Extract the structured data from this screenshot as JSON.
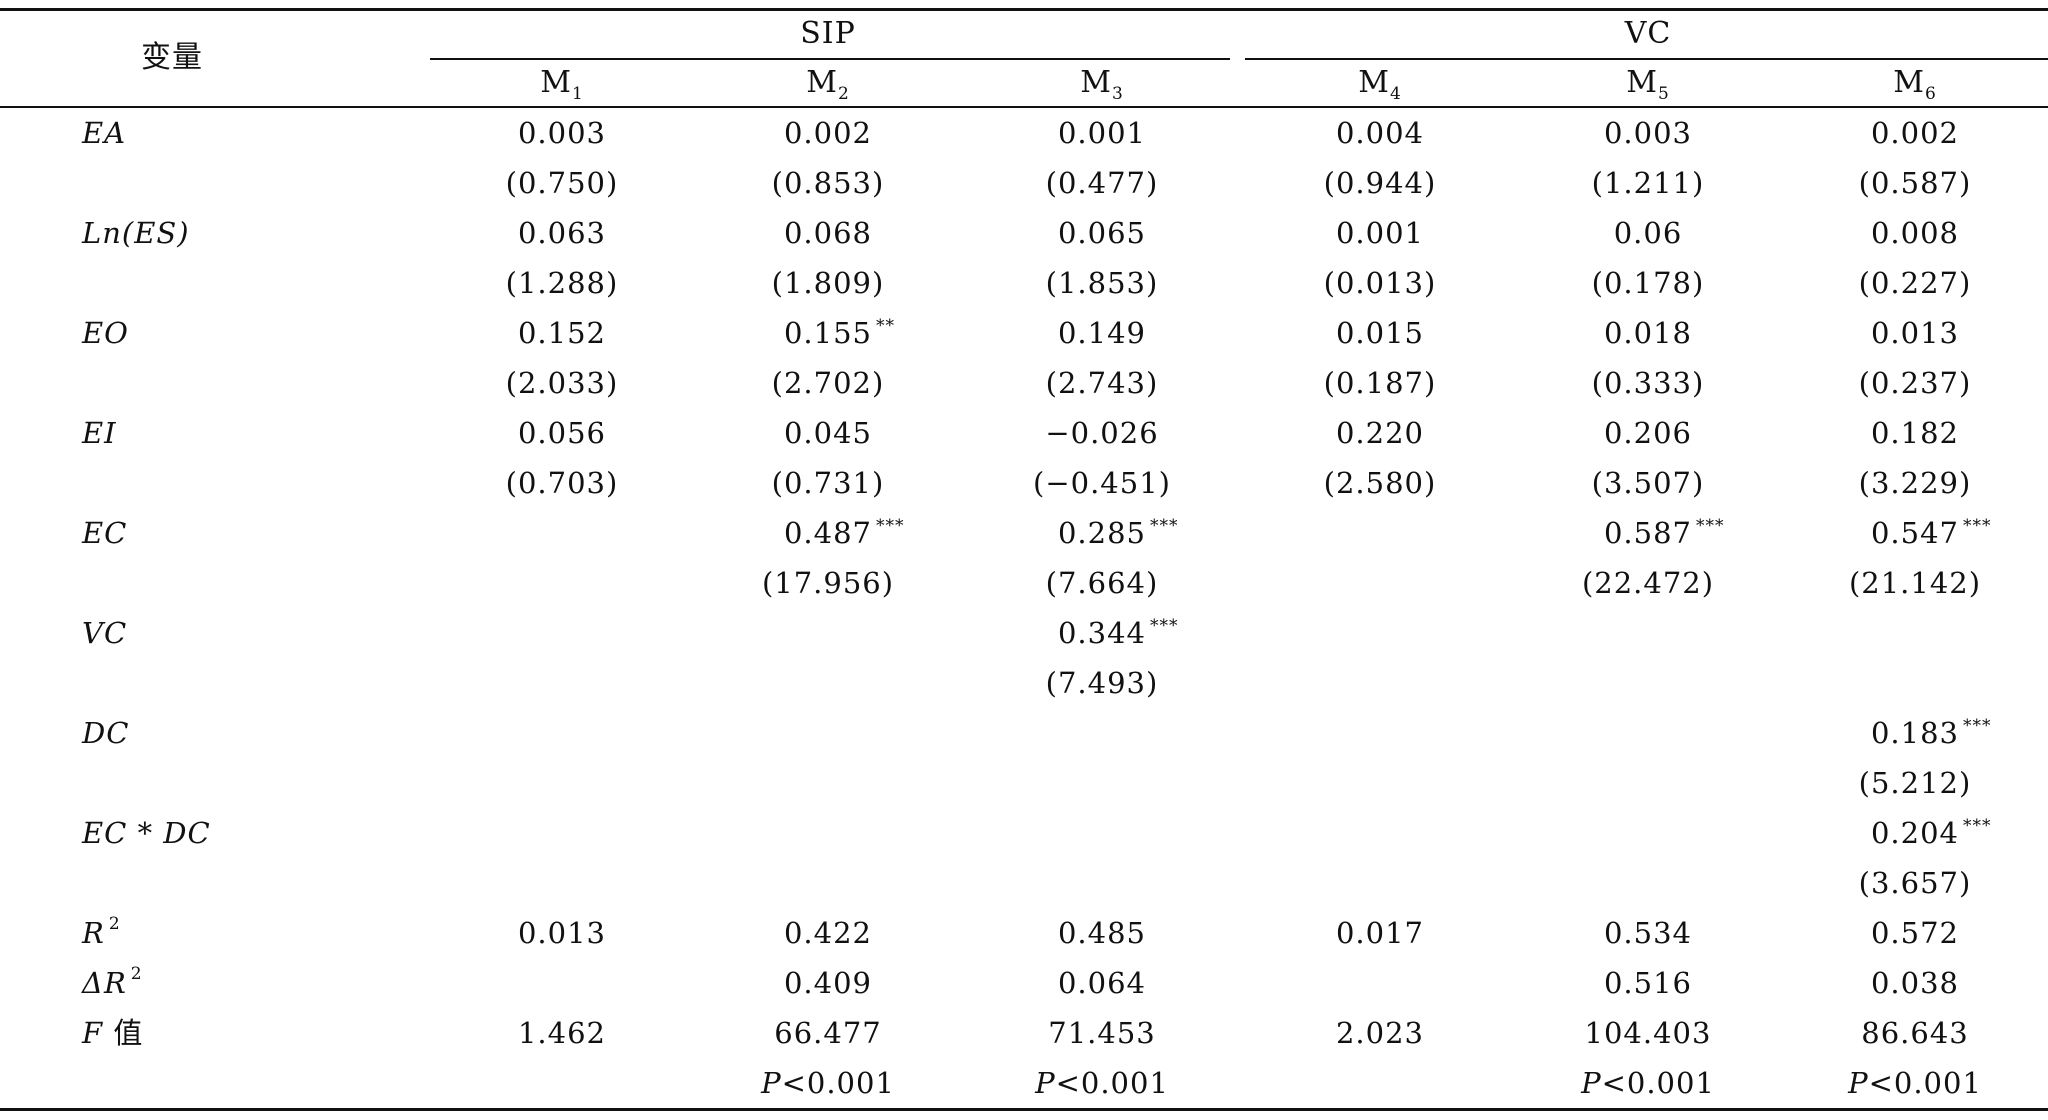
{
  "header": {
    "variable_label": "变量",
    "groups": [
      "SIP",
      "VC"
    ],
    "models": [
      {
        "base": "M",
        "sub": "1"
      },
      {
        "base": "M",
        "sub": "2"
      },
      {
        "base": "M",
        "sub": "3"
      },
      {
        "base": "M",
        "sub": "4"
      },
      {
        "base": "M",
        "sub": "5"
      },
      {
        "base": "M",
        "sub": "6"
      }
    ]
  },
  "rows": [
    {
      "label": "EA",
      "label_sup": "",
      "cells": [
        {
          "v": "0.003",
          "s": ""
        },
        {
          "v": "0.002",
          "s": ""
        },
        {
          "v": "0.001",
          "s": ""
        },
        {
          "v": "0.004",
          "s": ""
        },
        {
          "v": "0.003",
          "s": ""
        },
        {
          "v": "0.002",
          "s": ""
        }
      ]
    },
    {
      "label": "",
      "label_sup": "",
      "cells": [
        {
          "v": "(0.750)",
          "s": ""
        },
        {
          "v": "(0.853)",
          "s": ""
        },
        {
          "v": "(0.477)",
          "s": ""
        },
        {
          "v": "(0.944)",
          "s": ""
        },
        {
          "v": "(1.211)",
          "s": ""
        },
        {
          "v": "(0.587)",
          "s": ""
        }
      ]
    },
    {
      "label": "Ln(ES)",
      "label_sup": "",
      "cells": [
        {
          "v": "0.063",
          "s": ""
        },
        {
          "v": "0.068",
          "s": ""
        },
        {
          "v": "0.065",
          "s": ""
        },
        {
          "v": "0.001",
          "s": ""
        },
        {
          "v": "0.06",
          "s": ""
        },
        {
          "v": "0.008",
          "s": ""
        }
      ]
    },
    {
      "label": "",
      "label_sup": "",
      "cells": [
        {
          "v": "(1.288)",
          "s": ""
        },
        {
          "v": "(1.809)",
          "s": ""
        },
        {
          "v": "(1.853)",
          "s": ""
        },
        {
          "v": "(0.013)",
          "s": ""
        },
        {
          "v": "(0.178)",
          "s": ""
        },
        {
          "v": "(0.227)",
          "s": ""
        }
      ]
    },
    {
      "label": "EO",
      "label_sup": "",
      "cells": [
        {
          "v": "0.152",
          "s": ""
        },
        {
          "v": "0.155",
          "s": "**"
        },
        {
          "v": "0.149",
          "s": ""
        },
        {
          "v": "0.015",
          "s": ""
        },
        {
          "v": "0.018",
          "s": ""
        },
        {
          "v": "0.013",
          "s": ""
        }
      ]
    },
    {
      "label": "",
      "label_sup": "",
      "cells": [
        {
          "v": "(2.033)",
          "s": ""
        },
        {
          "v": "(2.702)",
          "s": ""
        },
        {
          "v": "(2.743)",
          "s": ""
        },
        {
          "v": "(0.187)",
          "s": ""
        },
        {
          "v": "(0.333)",
          "s": ""
        },
        {
          "v": "(0.237)",
          "s": ""
        }
      ]
    },
    {
      "label": "EI",
      "label_sup": "",
      "cells": [
        {
          "v": "0.056",
          "s": ""
        },
        {
          "v": "0.045",
          "s": ""
        },
        {
          "v": "−0.026",
          "s": ""
        },
        {
          "v": "0.220",
          "s": ""
        },
        {
          "v": "0.206",
          "s": ""
        },
        {
          "v": "0.182",
          "s": ""
        }
      ]
    },
    {
      "label": "",
      "label_sup": "",
      "cells": [
        {
          "v": "(0.703)",
          "s": ""
        },
        {
          "v": "(0.731)",
          "s": ""
        },
        {
          "v": "(−0.451)",
          "s": ""
        },
        {
          "v": "(2.580)",
          "s": ""
        },
        {
          "v": "(3.507)",
          "s": ""
        },
        {
          "v": "(3.229)",
          "s": ""
        }
      ]
    },
    {
      "label": "EC",
      "label_sup": "",
      "cells": [
        {
          "v": "",
          "s": ""
        },
        {
          "v": "0.487",
          "s": "***"
        },
        {
          "v": "0.285",
          "s": "***"
        },
        {
          "v": "",
          "s": ""
        },
        {
          "v": "0.587",
          "s": "***"
        },
        {
          "v": "0.547",
          "s": "***"
        }
      ]
    },
    {
      "label": "",
      "label_sup": "",
      "cells": [
        {
          "v": "",
          "s": ""
        },
        {
          "v": "(17.956)",
          "s": ""
        },
        {
          "v": "(7.664)",
          "s": ""
        },
        {
          "v": "",
          "s": ""
        },
        {
          "v": "(22.472)",
          "s": ""
        },
        {
          "v": "(21.142)",
          "s": ""
        }
      ]
    },
    {
      "label": "VC",
      "label_sup": "",
      "cells": [
        {
          "v": "",
          "s": ""
        },
        {
          "v": "",
          "s": ""
        },
        {
          "v": "0.344",
          "s": "***"
        },
        {
          "v": "",
          "s": ""
        },
        {
          "v": "",
          "s": ""
        },
        {
          "v": "",
          "s": ""
        }
      ]
    },
    {
      "label": "",
      "label_sup": "",
      "cells": [
        {
          "v": "",
          "s": ""
        },
        {
          "v": "",
          "s": ""
        },
        {
          "v": "(7.493)",
          "s": ""
        },
        {
          "v": "",
          "s": ""
        },
        {
          "v": "",
          "s": ""
        },
        {
          "v": "",
          "s": ""
        }
      ]
    },
    {
      "label": "DC",
      "label_sup": "",
      "cells": [
        {
          "v": "",
          "s": ""
        },
        {
          "v": "",
          "s": ""
        },
        {
          "v": "",
          "s": ""
        },
        {
          "v": "",
          "s": ""
        },
        {
          "v": "",
          "s": ""
        },
        {
          "v": "0.183",
          "s": "***"
        }
      ]
    },
    {
      "label": "",
      "label_sup": "",
      "cells": [
        {
          "v": "",
          "s": ""
        },
        {
          "v": "",
          "s": ""
        },
        {
          "v": "",
          "s": ""
        },
        {
          "v": "",
          "s": ""
        },
        {
          "v": "",
          "s": ""
        },
        {
          "v": "(5.212)",
          "s": ""
        }
      ]
    },
    {
      "label": "EC * DC",
      "label_sup": "",
      "cells": [
        {
          "v": "",
          "s": ""
        },
        {
          "v": "",
          "s": ""
        },
        {
          "v": "",
          "s": ""
        },
        {
          "v": "",
          "s": ""
        },
        {
          "v": "",
          "s": ""
        },
        {
          "v": "0.204",
          "s": "***"
        }
      ]
    },
    {
      "label": "",
      "label_sup": "",
      "cells": [
        {
          "v": "",
          "s": ""
        },
        {
          "v": "",
          "s": ""
        },
        {
          "v": "",
          "s": ""
        },
        {
          "v": "",
          "s": ""
        },
        {
          "v": "",
          "s": ""
        },
        {
          "v": "(3.657)",
          "s": ""
        }
      ]
    },
    {
      "label": "R",
      "label_sup": "2",
      "cells": [
        {
          "v": "0.013",
          "s": ""
        },
        {
          "v": "0.422",
          "s": ""
        },
        {
          "v": "0.485",
          "s": ""
        },
        {
          "v": "0.017",
          "s": ""
        },
        {
          "v": "0.534",
          "s": ""
        },
        {
          "v": "0.572",
          "s": ""
        }
      ]
    },
    {
      "label": "ΔR",
      "label_sup": "2",
      "cells": [
        {
          "v": "",
          "s": ""
        },
        {
          "v": "0.409",
          "s": ""
        },
        {
          "v": "0.064",
          "s": ""
        },
        {
          "v": "",
          "s": ""
        },
        {
          "v": "0.516",
          "s": ""
        },
        {
          "v": "0.038",
          "s": ""
        }
      ]
    },
    {
      "label": "F 值",
      "label_sup": "",
      "cells": [
        {
          "v": "1.462",
          "s": ""
        },
        {
          "v": "66.477",
          "s": ""
        },
        {
          "v": "71.453",
          "s": ""
        },
        {
          "v": "2.023",
          "s": ""
        },
        {
          "v": "104.403",
          "s": ""
        },
        {
          "v": "86.643",
          "s": ""
        }
      ]
    },
    {
      "label": "",
      "label_sup": "",
      "cells": [
        {
          "v": "",
          "s": ""
        },
        {
          "v": "P<0.001",
          "s": ""
        },
        {
          "v": "P<0.001",
          "s": ""
        },
        {
          "v": "",
          "s": ""
        },
        {
          "v": "P<0.001",
          "s": ""
        },
        {
          "v": "P<0.001",
          "s": ""
        }
      ]
    }
  ]
}
